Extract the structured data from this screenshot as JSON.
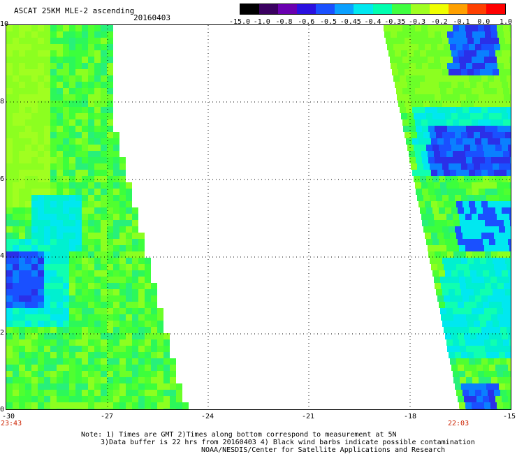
{
  "header": {
    "title": "ASCAT 25KM MLE-2 ascending",
    "date": "20160403"
  },
  "colorbar": {
    "labels": [
      "-15.0",
      "-1.0",
      "-0.8",
      "-0.6",
      "-0.5",
      "-0.45",
      "-0.4",
      "-0.35",
      "-0.3",
      "-0.2",
      "-0.1",
      "0.0",
      "1.0"
    ],
    "colors": [
      "#000000",
      "#3a0060",
      "#6a00b0",
      "#2a10e0",
      "#1a50ff",
      "#0aa0ff",
      "#00e8f0",
      "#00ffb0",
      "#40ff40",
      "#a0ff20",
      "#f0ff00",
      "#ffa000",
      "#ff4000",
      "#ff0000"
    ]
  },
  "axes": {
    "y_ticks": [
      "0",
      "2",
      "4",
      "6",
      "8",
      "10"
    ],
    "x_ticks": [
      "-30",
      "-27",
      "-24",
      "-21",
      "-18",
      "-15"
    ]
  },
  "times": {
    "left": "23:43",
    "right": "22:03"
  },
  "notes": {
    "line1": "Note: 1) Times are GMT 2)Times along bottom correspond to measurement at 5N",
    "line2": "3)Data buffer is 22 hrs from 20160403 4) Black wind barbs indicate possible contamination",
    "line3": "NOAA/NESDIS/Center for Satellite Applications and Research"
  }
}
